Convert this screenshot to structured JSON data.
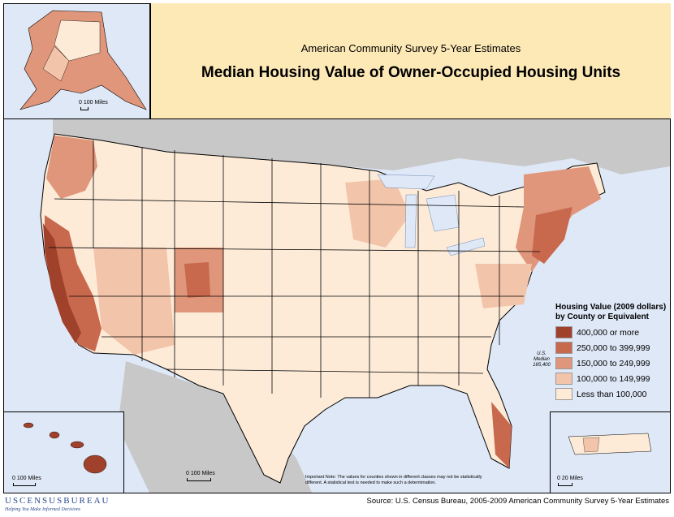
{
  "header": {
    "subtitle": "American Community Survey 5-Year Estimates",
    "title": "Median Housing Value of Owner-Occupied Housing Units"
  },
  "insets": {
    "alaska_scale": "0 100 Miles",
    "hawaii_scale": "0      100 Miles",
    "conus_scale": "0      100 Miles",
    "pr_scale": "0   20 Miles"
  },
  "legend": {
    "title_line1": "Housing Value (2009 dollars)",
    "title_line2": "by County or Equivalent",
    "classes": [
      {
        "label": "400,000 or more",
        "color": "#a0412b"
      },
      {
        "label": "250,000 to 399,999",
        "color": "#c8694e"
      },
      {
        "label": "150,000 to 249,999",
        "color": "#e0967a"
      },
      {
        "label": "100,000 to 149,999",
        "color": "#f2c4aa"
      },
      {
        "label": "Less than 100,000",
        "color": "#fdebd8"
      }
    ]
  },
  "median_note": {
    "line1": "U.S.",
    "line2": "Median",
    "line3": "185,400"
  },
  "important_note": "Important Note: The values for counties shown in different classes may not be statistically different. A statistical test is needed to make such a determination.",
  "footer": {
    "logo": "USCENSUSBUREAU",
    "tagline": "Helping You Make Informed Decisions",
    "source": "Source: U.S. Census Bureau, 2005-2009 American Community Survey 5-Year Estimates"
  },
  "colors": {
    "water": "#dfe8f7",
    "land_outside": "#c8c8c8",
    "title_bg": "#fde9b6"
  }
}
